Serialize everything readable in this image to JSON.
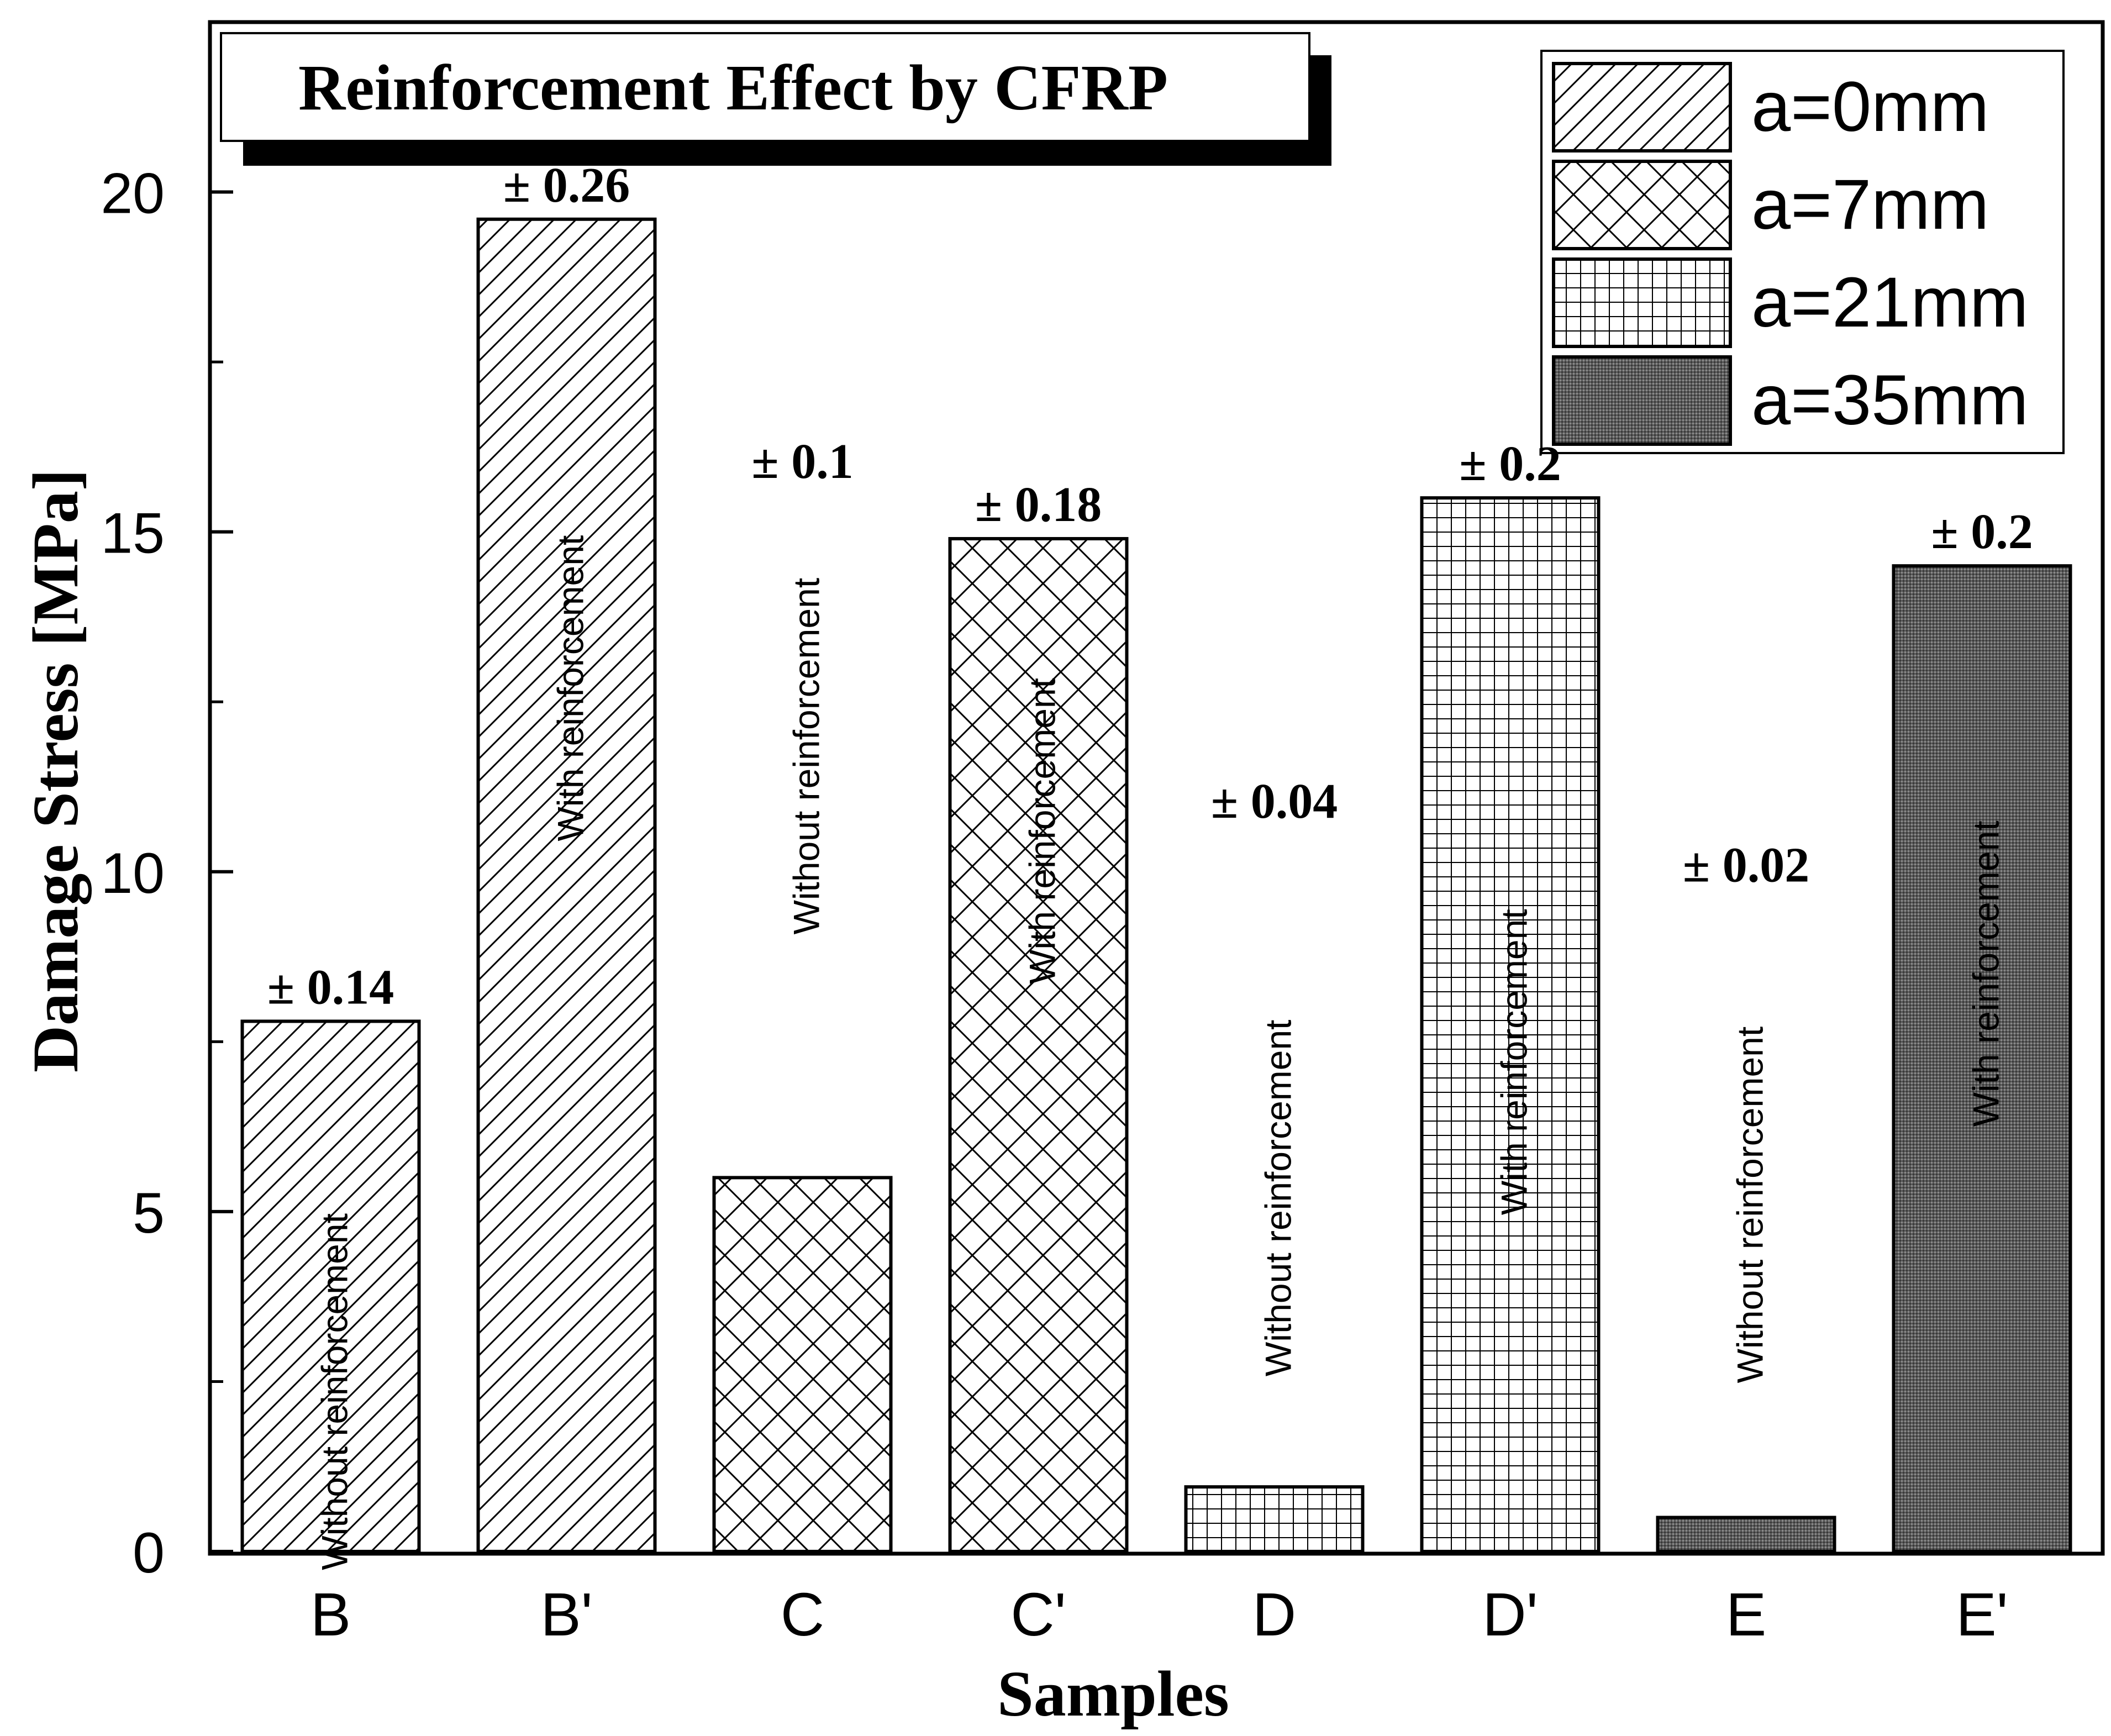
{
  "chart_data": {
    "type": "bar",
    "title": "Reinforcement Effect by CFRP",
    "xlabel": "Samples",
    "ylabel": "Damage Stress [MPa]",
    "ylim": [
      0,
      22.5
    ],
    "yticks": [
      0,
      5,
      10,
      15,
      20
    ],
    "categories": [
      "B",
      "B'",
      "C",
      "C'",
      "D",
      "D'",
      "E",
      "E'"
    ],
    "values": [
      7.8,
      19.6,
      5.5,
      14.9,
      0.95,
      15.5,
      0.5,
      14.5
    ],
    "errors": [
      "± 0.14",
      "± 0.26",
      "± 0.1",
      "± 0.18",
      "± 0.04",
      "± 0.2",
      "± 0.02",
      "± 0.2"
    ],
    "bar_notes": [
      "Without reinforcement",
      "With reinforcement",
      "Without reinforcement",
      "With reinforcement",
      "Without reinforcement",
      "With reinforcement",
      "Without reinforcement",
      "With reinforcement"
    ],
    "bar_series": [
      "a=0mm",
      "a=0mm",
      "a=7mm",
      "a=7mm",
      "a=21mm",
      "a=21mm",
      "a=35mm",
      "a=35mm"
    ],
    "legend": {
      "position": "top-right",
      "entries": [
        {
          "label": "a=0mm",
          "pattern": "diagonal"
        },
        {
          "label": "a=7mm",
          "pattern": "crosshatch"
        },
        {
          "label": "a=21mm",
          "pattern": "grid"
        },
        {
          "label": "a=35mm",
          "pattern": "dense"
        }
      ]
    },
    "colors": {
      "stroke": "#000000",
      "background": "#ffffff",
      "dense_fill": "#5a5a5a"
    }
  }
}
